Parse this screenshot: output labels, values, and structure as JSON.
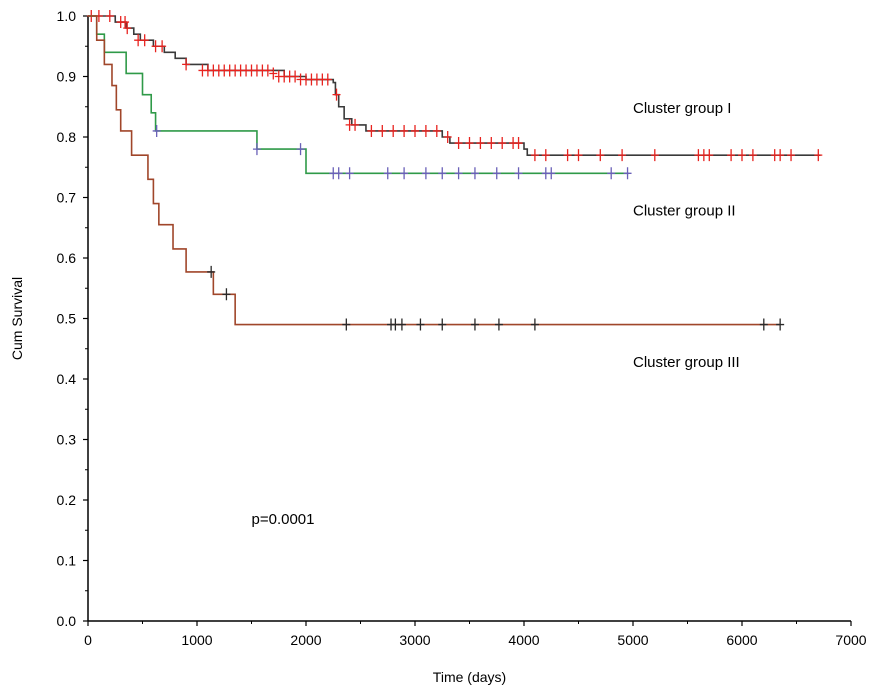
{
  "chart_data": {
    "type": "line",
    "subtype": "kaplan-meier",
    "title": "",
    "xlabel": "Time (days)",
    "ylabel": "Cum Survival",
    "xlim": [
      0,
      7000
    ],
    "ylim": [
      0.0,
      1.0
    ],
    "x_ticks": [
      "0",
      "1000",
      "2000",
      "3000",
      "4000",
      "5000",
      "6000",
      "7000"
    ],
    "y_ticks": [
      "0.0",
      "0.1",
      "0.2",
      "0.3",
      "0.4",
      "0.5",
      "0.6",
      "0.7",
      "0.8",
      "0.9",
      "1.0"
    ],
    "grid": false,
    "legend": "none",
    "series": [
      {
        "name": "Cluster group I",
        "line_color": "#3a3a3a",
        "censor_color": "#e8231f",
        "steps": [
          [
            0,
            1.0
          ],
          [
            250,
            0.99
          ],
          [
            350,
            0.98
          ],
          [
            420,
            0.97
          ],
          [
            480,
            0.96
          ],
          [
            600,
            0.95
          ],
          [
            700,
            0.94
          ],
          [
            800,
            0.93
          ],
          [
            900,
            0.92
          ],
          [
            1100,
            0.91
          ],
          [
            1800,
            0.9
          ],
          [
            2000,
            0.895
          ],
          [
            2250,
            0.89
          ],
          [
            2270,
            0.87
          ],
          [
            2300,
            0.85
          ],
          [
            2350,
            0.83
          ],
          [
            2420,
            0.82
          ],
          [
            2550,
            0.81
          ],
          [
            3250,
            0.8
          ],
          [
            3320,
            0.79
          ],
          [
            4000,
            0.78
          ],
          [
            4030,
            0.77
          ],
          [
            6720,
            0.77
          ]
        ],
        "censored": [
          [
            30,
            1.0
          ],
          [
            100,
            1.0
          ],
          [
            200,
            1.0
          ],
          [
            300,
            0.99
          ],
          [
            340,
            0.99
          ],
          [
            360,
            0.98
          ],
          [
            460,
            0.96
          ],
          [
            520,
            0.96
          ],
          [
            620,
            0.95
          ],
          [
            680,
            0.95
          ],
          [
            900,
            0.92
          ],
          [
            1050,
            0.91
          ],
          [
            1100,
            0.91
          ],
          [
            1150,
            0.91
          ],
          [
            1200,
            0.91
          ],
          [
            1250,
            0.91
          ],
          [
            1300,
            0.91
          ],
          [
            1350,
            0.91
          ],
          [
            1400,
            0.91
          ],
          [
            1450,
            0.91
          ],
          [
            1500,
            0.91
          ],
          [
            1550,
            0.91
          ],
          [
            1600,
            0.91
          ],
          [
            1650,
            0.91
          ],
          [
            1700,
            0.905
          ],
          [
            1750,
            0.9
          ],
          [
            1800,
            0.9
          ],
          [
            1850,
            0.9
          ],
          [
            1900,
            0.9
          ],
          [
            1950,
            0.895
          ],
          [
            2000,
            0.895
          ],
          [
            2050,
            0.895
          ],
          [
            2100,
            0.895
          ],
          [
            2150,
            0.895
          ],
          [
            2200,
            0.895
          ],
          [
            2280,
            0.87
          ],
          [
            2400,
            0.82
          ],
          [
            2450,
            0.82
          ],
          [
            2600,
            0.81
          ],
          [
            2700,
            0.81
          ],
          [
            2800,
            0.81
          ],
          [
            2900,
            0.81
          ],
          [
            3000,
            0.81
          ],
          [
            3100,
            0.81
          ],
          [
            3200,
            0.81
          ],
          [
            3300,
            0.8
          ],
          [
            3400,
            0.79
          ],
          [
            3500,
            0.79
          ],
          [
            3600,
            0.79
          ],
          [
            3700,
            0.79
          ],
          [
            3800,
            0.79
          ],
          [
            3900,
            0.79
          ],
          [
            3950,
            0.79
          ],
          [
            4100,
            0.77
          ],
          [
            4200,
            0.77
          ],
          [
            4400,
            0.77
          ],
          [
            4500,
            0.77
          ],
          [
            4700,
            0.77
          ],
          [
            4900,
            0.77
          ],
          [
            5200,
            0.77
          ],
          [
            5600,
            0.77
          ],
          [
            5650,
            0.77
          ],
          [
            5700,
            0.77
          ],
          [
            5900,
            0.77
          ],
          [
            6000,
            0.77
          ],
          [
            6100,
            0.77
          ],
          [
            6300,
            0.77
          ],
          [
            6350,
            0.77
          ],
          [
            6450,
            0.77
          ],
          [
            6700,
            0.77
          ]
        ]
      },
      {
        "name": "Cluster group II",
        "line_color": "#2f9a48",
        "censor_color": "#6a60b8",
        "steps": [
          [
            0,
            1.0
          ],
          [
            80,
            0.97
          ],
          [
            150,
            0.94
          ],
          [
            350,
            0.905
          ],
          [
            500,
            0.87
          ],
          [
            580,
            0.84
          ],
          [
            620,
            0.81
          ],
          [
            1550,
            0.78
          ],
          [
            2000,
            0.74
          ],
          [
            4960,
            0.74
          ]
        ],
        "censored": [
          [
            630,
            0.81
          ],
          [
            1550,
            0.78
          ],
          [
            1950,
            0.78
          ],
          [
            2250,
            0.74
          ],
          [
            2300,
            0.74
          ],
          [
            2400,
            0.74
          ],
          [
            2750,
            0.74
          ],
          [
            2900,
            0.74
          ],
          [
            3100,
            0.74
          ],
          [
            3250,
            0.74
          ],
          [
            3400,
            0.74
          ],
          [
            3550,
            0.74
          ],
          [
            3750,
            0.74
          ],
          [
            3950,
            0.74
          ],
          [
            4200,
            0.74
          ],
          [
            4250,
            0.74
          ],
          [
            4800,
            0.74
          ],
          [
            4950,
            0.74
          ]
        ]
      },
      {
        "name": "Cluster group III",
        "line_color": "#a0462a",
        "censor_color": "#2a2a2a",
        "steps": [
          [
            0,
            1.0
          ],
          [
            80,
            0.96
          ],
          [
            150,
            0.92
          ],
          [
            220,
            0.885
          ],
          [
            260,
            0.845
          ],
          [
            300,
            0.81
          ],
          [
            400,
            0.77
          ],
          [
            550,
            0.73
          ],
          [
            600,
            0.69
          ],
          [
            650,
            0.655
          ],
          [
            780,
            0.615
          ],
          [
            900,
            0.577
          ],
          [
            1150,
            0.54
          ],
          [
            1350,
            0.49
          ],
          [
            6350,
            0.49
          ]
        ],
        "censored": [
          [
            1130,
            0.577
          ],
          [
            1270,
            0.54
          ],
          [
            2370,
            0.49
          ],
          [
            2780,
            0.49
          ],
          [
            2820,
            0.49
          ],
          [
            2880,
            0.49
          ],
          [
            3050,
            0.49
          ],
          [
            3250,
            0.49
          ],
          [
            3550,
            0.49
          ],
          [
            3770,
            0.49
          ],
          [
            4100,
            0.49
          ],
          [
            6200,
            0.49
          ],
          [
            6350,
            0.49
          ]
        ]
      }
    ],
    "annotations": [
      {
        "text": "Cluster group I",
        "x": 5000,
        "y": 0.84
      },
      {
        "text": "Cluster group II",
        "x": 5000,
        "y": 0.67
      },
      {
        "text": "Cluster group III",
        "x": 5000,
        "y": 0.42
      },
      {
        "text": "p=0.0001",
        "x": 1500,
        "y": 0.16
      }
    ]
  }
}
